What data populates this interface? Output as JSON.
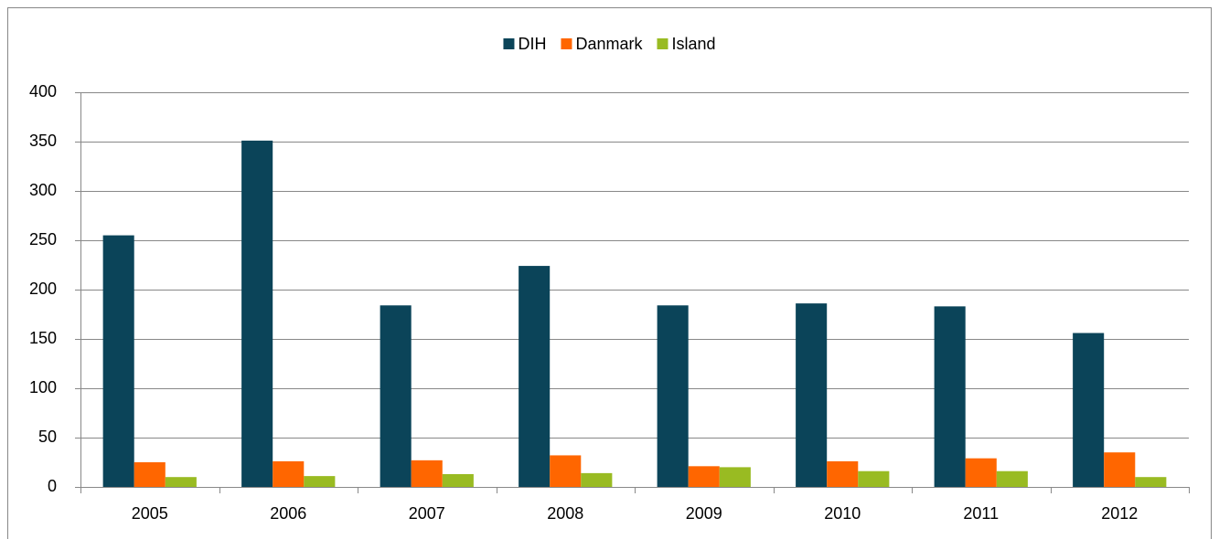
{
  "chart_data": {
    "type": "bar",
    "categories": [
      "2005",
      "2006",
      "2007",
      "2008",
      "2009",
      "2010",
      "2011",
      "2012"
    ],
    "series": [
      {
        "name": "DIH",
        "color": "#0b4459",
        "values": [
          255,
          351,
          184,
          224,
          184,
          186,
          183,
          156
        ]
      },
      {
        "name": "Danmark",
        "color": "#ff6600",
        "values": [
          25,
          26,
          27,
          32,
          21,
          26,
          29,
          35
        ]
      },
      {
        "name": "Island",
        "color": "#99bb22",
        "values": [
          10,
          11,
          13,
          14,
          20,
          16,
          16,
          10
        ]
      }
    ],
    "ylim": [
      0,
      400
    ],
    "yticks": [
      0,
      50,
      100,
      150,
      200,
      250,
      300,
      350,
      400
    ],
    "grid": true,
    "legend": "top"
  }
}
